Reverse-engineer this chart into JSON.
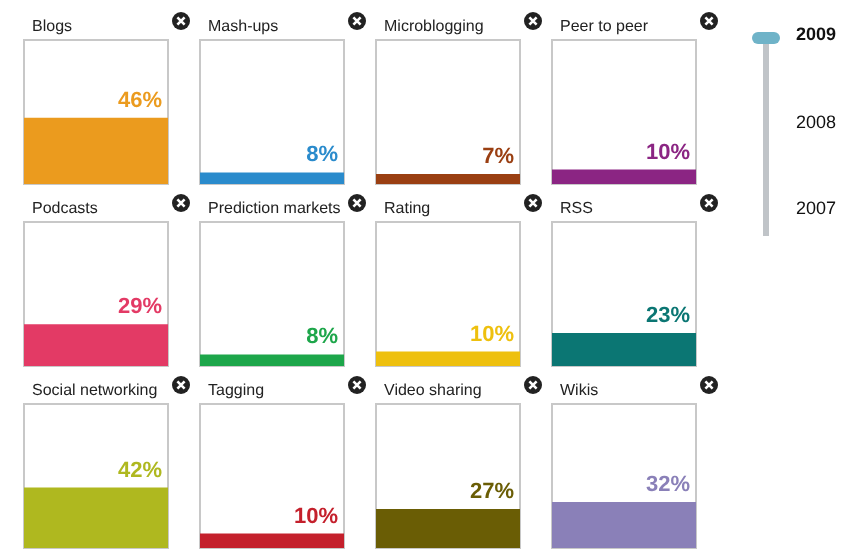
{
  "chart_data": [
    {
      "type": "bar",
      "title": "Blogs",
      "categories": [
        null
      ],
      "values": [
        46
      ],
      "value_labels": [
        "46%"
      ],
      "color": "#eb9b1e",
      "ylim": [
        0,
        100
      ],
      "tick_labels": false,
      "grid": false
    },
    {
      "type": "bar",
      "title": "Mash-ups",
      "categories": [
        null
      ],
      "values": [
        8
      ],
      "value_labels": [
        "8%"
      ],
      "color": "#2a8bcc",
      "ylim": [
        0,
        100
      ],
      "tick_labels": false,
      "grid": false
    },
    {
      "type": "bar",
      "title": "Microblogging",
      "categories": [
        null
      ],
      "values": [
        7
      ],
      "value_labels": [
        "7%"
      ],
      "color": "#9a3f12",
      "ylim": [
        0,
        100
      ],
      "tick_labels": false,
      "grid": false
    },
    {
      "type": "bar",
      "title": "Peer to peer",
      "categories": [
        null
      ],
      "values": [
        10
      ],
      "value_labels": [
        "10%"
      ],
      "color": "#8b2583",
      "ylim": [
        0,
        100
      ],
      "tick_labels": false,
      "grid": false
    },
    {
      "type": "bar",
      "title": "Podcasts",
      "categories": [
        null
      ],
      "values": [
        29
      ],
      "value_labels": [
        "29%"
      ],
      "color": "#e33a65",
      "ylim": [
        0,
        100
      ],
      "tick_labels": false,
      "grid": false
    },
    {
      "type": "bar",
      "title": "Prediction markets",
      "categories": [
        null
      ],
      "values": [
        8
      ],
      "value_labels": [
        "8%"
      ],
      "color": "#1da64a",
      "ylim": [
        0,
        100
      ],
      "tick_labels": false,
      "grid": false
    },
    {
      "type": "bar",
      "title": "Rating",
      "categories": [
        null
      ],
      "values": [
        10
      ],
      "value_labels": [
        "10%"
      ],
      "color": "#eec00e",
      "ylim": [
        0,
        100
      ],
      "tick_labels": false,
      "grid": false
    },
    {
      "type": "bar",
      "title": "RSS",
      "categories": [
        null
      ],
      "values": [
        23
      ],
      "value_labels": [
        "23%"
      ],
      "color": "#0b7673",
      "ylim": [
        0,
        100
      ],
      "tick_labels": false,
      "grid": false
    },
    {
      "type": "bar",
      "title": "Social networking",
      "categories": [
        null
      ],
      "values": [
        42
      ],
      "value_labels": [
        "42%"
      ],
      "color": "#afb81f",
      "ylim": [
        0,
        100
      ],
      "tick_labels": false,
      "grid": false
    },
    {
      "type": "bar",
      "title": "Tagging",
      "categories": [
        null
      ],
      "values": [
        10
      ],
      "value_labels": [
        "10%"
      ],
      "color": "#c4202c",
      "ylim": [
        0,
        100
      ],
      "tick_labels": false,
      "grid": false
    },
    {
      "type": "bar",
      "title": "Video sharing",
      "categories": [
        null
      ],
      "values": [
        27
      ],
      "value_labels": [
        "27%"
      ],
      "color": "#6a5d05",
      "ylim": [
        0,
        100
      ],
      "tick_labels": false,
      "grid": false
    },
    {
      "type": "bar",
      "title": "Wikis",
      "categories": [
        null
      ],
      "values": [
        32
      ],
      "value_labels": [
        "32%"
      ],
      "color": "#8a80b8",
      "ylim": [
        0,
        100
      ],
      "tick_labels": false,
      "grid": false
    },
    {
      "type": "other",
      "annotations": [
        "2009",
        "2008",
        "2007"
      ]
    }
  ]
}
